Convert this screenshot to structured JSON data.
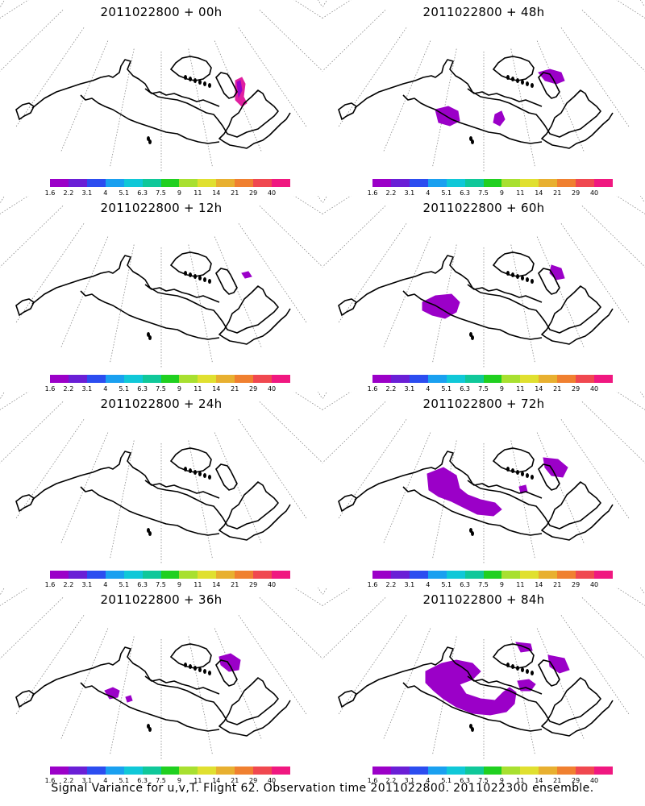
{
  "footer": "Signal Variance for u,v,T. Flight 62. Observation time 2011022800. 2011022300 ensemble.",
  "colorbar": {
    "labels": [
      "1.6",
      "2.2",
      "3.1",
      "4",
      "5.1",
      "6.3",
      "7.5",
      "9",
      "11",
      "14",
      "21",
      "29",
      "40"
    ],
    "colors": [
      "#9b00c8",
      "#6a1fd6",
      "#2c4df0",
      "#1aa0f0",
      "#10c8d8",
      "#10c89a",
      "#20d020",
      "#a8e030",
      "#e0e030",
      "#e8b030",
      "#f08030",
      "#f04850",
      "#f01880"
    ]
  },
  "panels": [
    {
      "title": "2011022800 + 00h",
      "signal": "magenta-strip"
    },
    {
      "title": "2011022800 + 48h",
      "signal": "small-blobs"
    },
    {
      "title": "2011022800 + 12h",
      "signal": "tiny"
    },
    {
      "title": "2011022800 + 60h",
      "signal": "medium-blob"
    },
    {
      "title": "2011022800 + 24h",
      "signal": "none"
    },
    {
      "title": "2011022800 + 72h",
      "signal": "large-band"
    },
    {
      "title": "2011022800 + 36h",
      "signal": "small-east"
    },
    {
      "title": "2011022800 + 84h",
      "signal": "very-large-band"
    }
  ]
}
